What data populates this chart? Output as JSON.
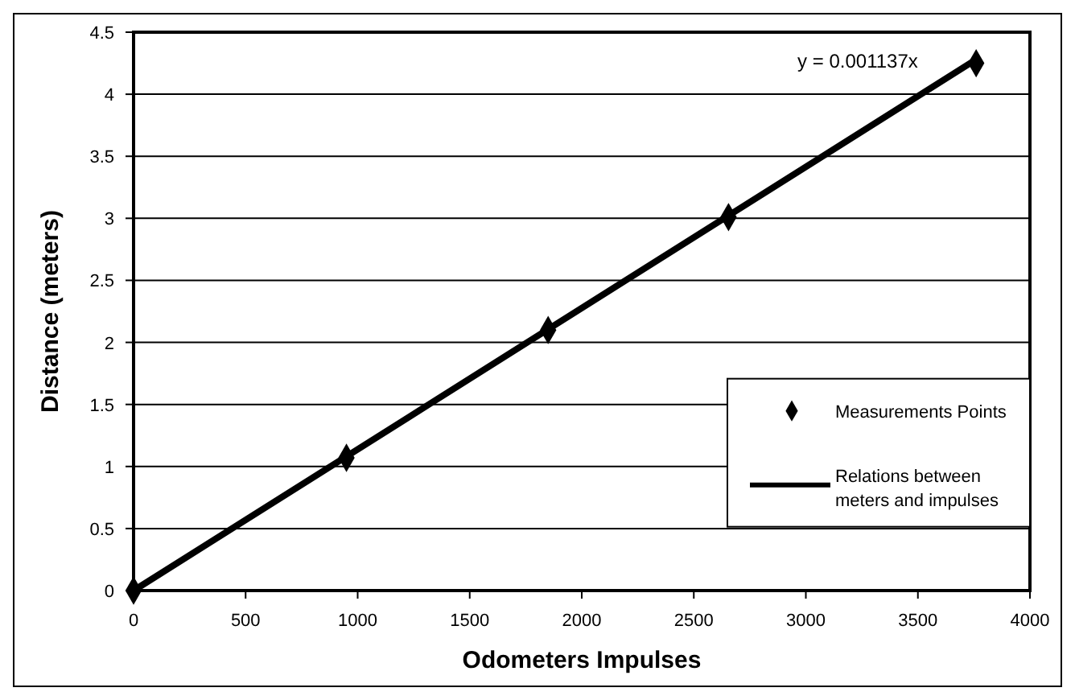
{
  "chart_data": {
    "type": "scatter",
    "xlabel": "Odometers Impulses",
    "ylabel": "Distance (meters)",
    "xlim": [
      0,
      4000
    ],
    "xticks": [
      0,
      500,
      1000,
      1500,
      2000,
      2500,
      3000,
      3500,
      4000
    ],
    "ylim": [
      0,
      4.5
    ],
    "yticks": [
      0,
      0.5,
      1,
      1.5,
      2,
      2.5,
      3,
      3.5,
      4,
      4.5
    ],
    "grid": "y",
    "legend": "bottom right",
    "marker": "diamond",
    "annotations": [
      "y = 0.001137x"
    ],
    "series": [
      {
        "name": "Measurements Points",
        "color": "#000000",
        "x": [
          0,
          950,
          1850,
          2655,
          3760
        ],
        "values": [
          0,
          1.07,
          2.1,
          3.01,
          4.25
        ]
      },
      {
        "name": "Relations between meters and impulses",
        "type": "line",
        "color": "#000000",
        "x": [
          0,
          3760
        ],
        "values": [
          0,
          4.28
        ],
        "marker": "none",
        "line_style": "solid"
      }
    ]
  }
}
